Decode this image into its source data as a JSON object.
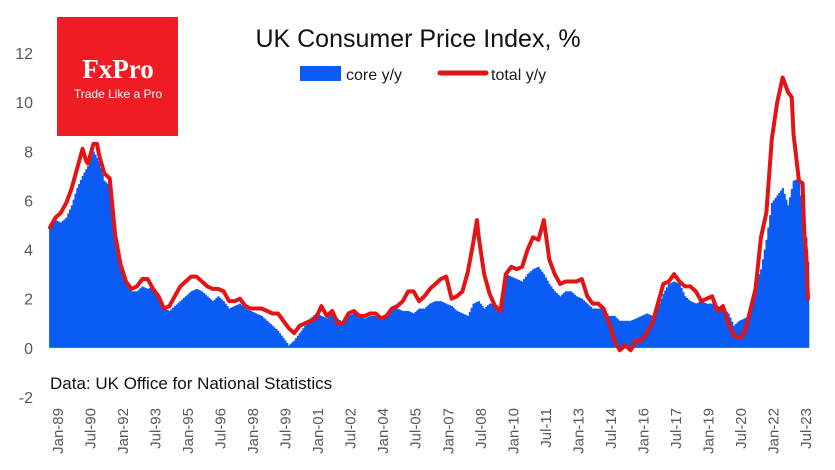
{
  "logo": {
    "brand": "FxPro",
    "tagline": "Trade Like a Pro",
    "color": "#ee1c23"
  },
  "chart_data": {
    "type": "area+line",
    "title": "UK Consumer  Price Index, %",
    "source": "Data: UK Office for National Statistics",
    "ylim": [
      -2,
      12
    ],
    "y_ticks": [
      -2,
      0,
      2,
      4,
      6,
      8,
      10,
      12
    ],
    "grid": false,
    "legend_position": "top-center",
    "x_range": [
      1989.0,
      2023.917
    ],
    "x_ticks": [
      "Jan-89",
      "Jul-90",
      "Jan-92",
      "Jul-93",
      "Jan-95",
      "Jul-96",
      "Jan-98",
      "Jul-99",
      "Jan-01",
      "Jul-02",
      "Jan-04",
      "Jul-05",
      "Jan-07",
      "Jul-08",
      "Jan-10",
      "Jul-11",
      "Jan-13",
      "Jul-14",
      "Jan-16",
      "Jul-17",
      "Jan-19",
      "Jul-20",
      "Jan-22",
      "Jul-23"
    ],
    "series": [
      {
        "name": "core y/y",
        "style": "area",
        "color": "#0a5cf5",
        "points": [
          [
            1989.0,
            4.9
          ],
          [
            1989.25,
            5.2
          ],
          [
            1989.5,
            5.1
          ],
          [
            1989.75,
            5.3
          ],
          [
            1990.0,
            5.8
          ],
          [
            1990.25,
            6.5
          ],
          [
            1990.5,
            7.0
          ],
          [
            1990.75,
            7.4
          ],
          [
            1991.0,
            8.0
          ],
          [
            1991.25,
            7.6
          ],
          [
            1991.5,
            6.8
          ],
          [
            1991.75,
            6.6
          ],
          [
            1992.0,
            4.5
          ],
          [
            1992.25,
            3.4
          ],
          [
            1992.5,
            2.7
          ],
          [
            1992.75,
            2.3
          ],
          [
            1993.0,
            2.3
          ],
          [
            1993.25,
            2.5
          ],
          [
            1993.5,
            2.4
          ],
          [
            1993.75,
            2.5
          ],
          [
            1994.0,
            2.1
          ],
          [
            1994.25,
            1.6
          ],
          [
            1994.5,
            1.5
          ],
          [
            1994.75,
            1.7
          ],
          [
            1995.0,
            1.9
          ],
          [
            1995.25,
            2.1
          ],
          [
            1995.5,
            2.3
          ],
          [
            1995.75,
            2.4
          ],
          [
            1996.0,
            2.3
          ],
          [
            1996.25,
            2.1
          ],
          [
            1996.5,
            1.9
          ],
          [
            1996.75,
            2.1
          ],
          [
            1997.0,
            1.9
          ],
          [
            1997.25,
            1.6
          ],
          [
            1997.5,
            1.7
          ],
          [
            1997.75,
            1.8
          ],
          [
            1998.0,
            1.6
          ],
          [
            1998.25,
            1.5
          ],
          [
            1998.5,
            1.4
          ],
          [
            1998.75,
            1.3
          ],
          [
            1999.0,
            1.1
          ],
          [
            1999.25,
            0.9
          ],
          [
            1999.5,
            0.7
          ],
          [
            1999.75,
            0.4
          ],
          [
            2000.0,
            0.1
          ],
          [
            2000.25,
            0.3
          ],
          [
            2000.5,
            0.6
          ],
          [
            2000.75,
            0.9
          ],
          [
            2001.0,
            1.2
          ],
          [
            2001.25,
            1.4
          ],
          [
            2001.5,
            1.3
          ],
          [
            2001.75,
            1.2
          ],
          [
            2002.0,
            1.4
          ],
          [
            2002.25,
            1.2
          ],
          [
            2002.5,
            1.0
          ],
          [
            2002.75,
            1.3
          ],
          [
            2003.0,
            1.4
          ],
          [
            2003.25,
            1.3
          ],
          [
            2003.5,
            1.2
          ],
          [
            2003.75,
            1.3
          ],
          [
            2004.0,
            1.3
          ],
          [
            2004.25,
            1.2
          ],
          [
            2004.5,
            1.4
          ],
          [
            2004.75,
            1.6
          ],
          [
            2005.0,
            1.6
          ],
          [
            2005.25,
            1.5
          ],
          [
            2005.5,
            1.5
          ],
          [
            2005.75,
            1.4
          ],
          [
            2006.0,
            1.6
          ],
          [
            2006.25,
            1.6
          ],
          [
            2006.5,
            1.8
          ],
          [
            2006.75,
            1.9
          ],
          [
            2007.0,
            1.9
          ],
          [
            2007.25,
            1.8
          ],
          [
            2007.5,
            1.7
          ],
          [
            2007.75,
            1.5
          ],
          [
            2008.0,
            1.4
          ],
          [
            2008.25,
            1.3
          ],
          [
            2008.5,
            1.8
          ],
          [
            2008.75,
            1.9
          ],
          [
            2009.0,
            1.6
          ],
          [
            2009.25,
            1.8
          ],
          [
            2009.5,
            1.8
          ],
          [
            2009.75,
            1.6
          ],
          [
            2010.0,
            3.0
          ],
          [
            2010.25,
            2.9
          ],
          [
            2010.5,
            2.8
          ],
          [
            2010.75,
            2.7
          ],
          [
            2011.0,
            3.0
          ],
          [
            2011.25,
            3.2
          ],
          [
            2011.5,
            3.3
          ],
          [
            2011.75,
            3.0
          ],
          [
            2012.0,
            2.6
          ],
          [
            2012.25,
            2.3
          ],
          [
            2012.5,
            2.1
          ],
          [
            2012.75,
            2.3
          ],
          [
            2013.0,
            2.3
          ],
          [
            2013.25,
            2.1
          ],
          [
            2013.5,
            2.0
          ],
          [
            2013.75,
            1.8
          ],
          [
            2014.0,
            1.6
          ],
          [
            2014.25,
            1.6
          ],
          [
            2014.5,
            1.6
          ],
          [
            2014.75,
            1.3
          ],
          [
            2015.0,
            1.3
          ],
          [
            2015.25,
            1.1
          ],
          [
            2015.5,
            1.1
          ],
          [
            2015.75,
            1.1
          ],
          [
            2016.0,
            1.2
          ],
          [
            2016.25,
            1.3
          ],
          [
            2016.5,
            1.4
          ],
          [
            2016.75,
            1.3
          ],
          [
            2017.0,
            1.6
          ],
          [
            2017.25,
            2.2
          ],
          [
            2017.5,
            2.6
          ],
          [
            2017.75,
            2.7
          ],
          [
            2018.0,
            2.6
          ],
          [
            2018.25,
            2.1
          ],
          [
            2018.5,
            1.9
          ],
          [
            2018.75,
            1.8
          ],
          [
            2019.0,
            1.9
          ],
          [
            2019.25,
            1.8
          ],
          [
            2019.5,
            1.8
          ],
          [
            2019.75,
            1.7
          ],
          [
            2020.0,
            1.6
          ],
          [
            2020.25,
            1.4
          ],
          [
            2020.5,
            0.9
          ],
          [
            2020.75,
            1.1
          ],
          [
            2021.0,
            1.2
          ],
          [
            2021.25,
            1.3
          ],
          [
            2021.5,
            2.6
          ],
          [
            2021.75,
            3.2
          ],
          [
            2022.0,
            4.4
          ],
          [
            2022.25,
            5.9
          ],
          [
            2022.5,
            6.2
          ],
          [
            2022.75,
            6.5
          ],
          [
            2023.0,
            5.8
          ],
          [
            2023.25,
            6.8
          ],
          [
            2023.5,
            6.9
          ],
          [
            2023.667,
            5.5
          ],
          [
            2023.75,
            5.1
          ],
          [
            2023.833,
            4.5
          ],
          [
            2023.917,
            3.5
          ]
        ]
      },
      {
        "name": "total y/y",
        "style": "line",
        "color": "#e41414",
        "points": [
          [
            1989.0,
            4.9
          ],
          [
            1989.25,
            5.3
          ],
          [
            1989.5,
            5.5
          ],
          [
            1989.75,
            5.9
          ],
          [
            1990.0,
            6.5
          ],
          [
            1990.25,
            7.3
          ],
          [
            1990.5,
            8.1
          ],
          [
            1990.667,
            7.6
          ],
          [
            1990.75,
            7.5
          ],
          [
            1991.0,
            8.3
          ],
          [
            1991.167,
            8.3
          ],
          [
            1991.25,
            7.9
          ],
          [
            1991.5,
            7.1
          ],
          [
            1991.75,
            6.9
          ],
          [
            1992.0,
            4.6
          ],
          [
            1992.25,
            3.4
          ],
          [
            1992.5,
            2.7
          ],
          [
            1992.75,
            2.4
          ],
          [
            1993.0,
            2.5
          ],
          [
            1993.25,
            2.8
          ],
          [
            1993.5,
            2.8
          ],
          [
            1993.75,
            2.4
          ],
          [
            1994.0,
            2.1
          ],
          [
            1994.25,
            1.6
          ],
          [
            1994.5,
            1.7
          ],
          [
            1994.75,
            2.1
          ],
          [
            1995.0,
            2.5
          ],
          [
            1995.25,
            2.7
          ],
          [
            1995.5,
            2.9
          ],
          [
            1995.75,
            2.9
          ],
          [
            1996.0,
            2.7
          ],
          [
            1996.25,
            2.5
          ],
          [
            1996.5,
            2.4
          ],
          [
            1996.75,
            2.4
          ],
          [
            1997.0,
            2.3
          ],
          [
            1997.25,
            1.9
          ],
          [
            1997.5,
            1.9
          ],
          [
            1997.75,
            2.0
          ],
          [
            1998.0,
            1.7
          ],
          [
            1998.25,
            1.6
          ],
          [
            1998.5,
            1.6
          ],
          [
            1998.75,
            1.6
          ],
          [
            1999.0,
            1.5
          ],
          [
            1999.25,
            1.4
          ],
          [
            1999.5,
            1.4
          ],
          [
            1999.75,
            1.1
          ],
          [
            2000.0,
            0.8
          ],
          [
            2000.25,
            0.6
          ],
          [
            2000.5,
            0.9
          ],
          [
            2000.75,
            1.0
          ],
          [
            2001.0,
            1.1
          ],
          [
            2001.25,
            1.2
          ],
          [
            2001.5,
            1.7
          ],
          [
            2001.75,
            1.3
          ],
          [
            2002.0,
            1.5
          ],
          [
            2002.25,
            1.0
          ],
          [
            2002.5,
            1.0
          ],
          [
            2002.75,
            1.4
          ],
          [
            2003.0,
            1.5
          ],
          [
            2003.25,
            1.3
          ],
          [
            2003.5,
            1.3
          ],
          [
            2003.75,
            1.4
          ],
          [
            2004.0,
            1.4
          ],
          [
            2004.25,
            1.2
          ],
          [
            2004.5,
            1.3
          ],
          [
            2004.75,
            1.6
          ],
          [
            2005.0,
            1.7
          ],
          [
            2005.25,
            1.9
          ],
          [
            2005.5,
            2.3
          ],
          [
            2005.75,
            2.3
          ],
          [
            2006.0,
            1.9
          ],
          [
            2006.25,
            2.1
          ],
          [
            2006.5,
            2.4
          ],
          [
            2006.75,
            2.6
          ],
          [
            2007.0,
            2.8
          ],
          [
            2007.25,
            2.9
          ],
          [
            2007.5,
            2.0
          ],
          [
            2007.75,
            2.1
          ],
          [
            2008.0,
            2.3
          ],
          [
            2008.25,
            3.1
          ],
          [
            2008.5,
            4.3
          ],
          [
            2008.667,
            5.2
          ],
          [
            2008.75,
            4.5
          ],
          [
            2009.0,
            3.0
          ],
          [
            2009.25,
            2.2
          ],
          [
            2009.5,
            1.7
          ],
          [
            2009.75,
            1.5
          ],
          [
            2010.0,
            3.0
          ],
          [
            2010.25,
            3.3
          ],
          [
            2010.5,
            3.2
          ],
          [
            2010.75,
            3.3
          ],
          [
            2011.0,
            4.0
          ],
          [
            2011.25,
            4.5
          ],
          [
            2011.5,
            4.4
          ],
          [
            2011.75,
            5.2
          ],
          [
            2012.0,
            3.6
          ],
          [
            2012.25,
            3.0
          ],
          [
            2012.5,
            2.6
          ],
          [
            2012.75,
            2.7
          ],
          [
            2013.0,
            2.7
          ],
          [
            2013.25,
            2.7
          ],
          [
            2013.5,
            2.8
          ],
          [
            2013.75,
            2.1
          ],
          [
            2014.0,
            1.8
          ],
          [
            2014.25,
            1.8
          ],
          [
            2014.5,
            1.6
          ],
          [
            2014.75,
            1.0
          ],
          [
            2015.0,
            0.3
          ],
          [
            2015.25,
            -0.1
          ],
          [
            2015.5,
            0.1
          ],
          [
            2015.75,
            -0.1
          ],
          [
            2016.0,
            0.3
          ],
          [
            2016.25,
            0.3
          ],
          [
            2016.5,
            0.6
          ],
          [
            2016.75,
            1.0
          ],
          [
            2017.0,
            1.8
          ],
          [
            2017.25,
            2.6
          ],
          [
            2017.5,
            2.7
          ],
          [
            2017.75,
            3.0
          ],
          [
            2018.0,
            2.7
          ],
          [
            2018.25,
            2.5
          ],
          [
            2018.5,
            2.5
          ],
          [
            2018.75,
            2.3
          ],
          [
            2019.0,
            1.9
          ],
          [
            2019.25,
            2.0
          ],
          [
            2019.5,
            2.1
          ],
          [
            2019.75,
            1.5
          ],
          [
            2020.0,
            1.7
          ],
          [
            2020.25,
            1.0
          ],
          [
            2020.5,
            0.5
          ],
          [
            2020.75,
            0.4
          ],
          [
            2021.0,
            0.6
          ],
          [
            2021.25,
            1.5
          ],
          [
            2021.5,
            2.4
          ],
          [
            2021.75,
            4.5
          ],
          [
            2022.0,
            5.5
          ],
          [
            2022.25,
            8.5
          ],
          [
            2022.5,
            10.0
          ],
          [
            2022.75,
            11.0
          ],
          [
            2023.0,
            10.4
          ],
          [
            2023.167,
            10.2
          ],
          [
            2023.25,
            8.7
          ],
          [
            2023.5,
            6.8
          ],
          [
            2023.667,
            6.7
          ],
          [
            2023.75,
            4.6
          ],
          [
            2023.833,
            3.9
          ],
          [
            2023.917,
            2.0
          ]
        ]
      }
    ]
  }
}
